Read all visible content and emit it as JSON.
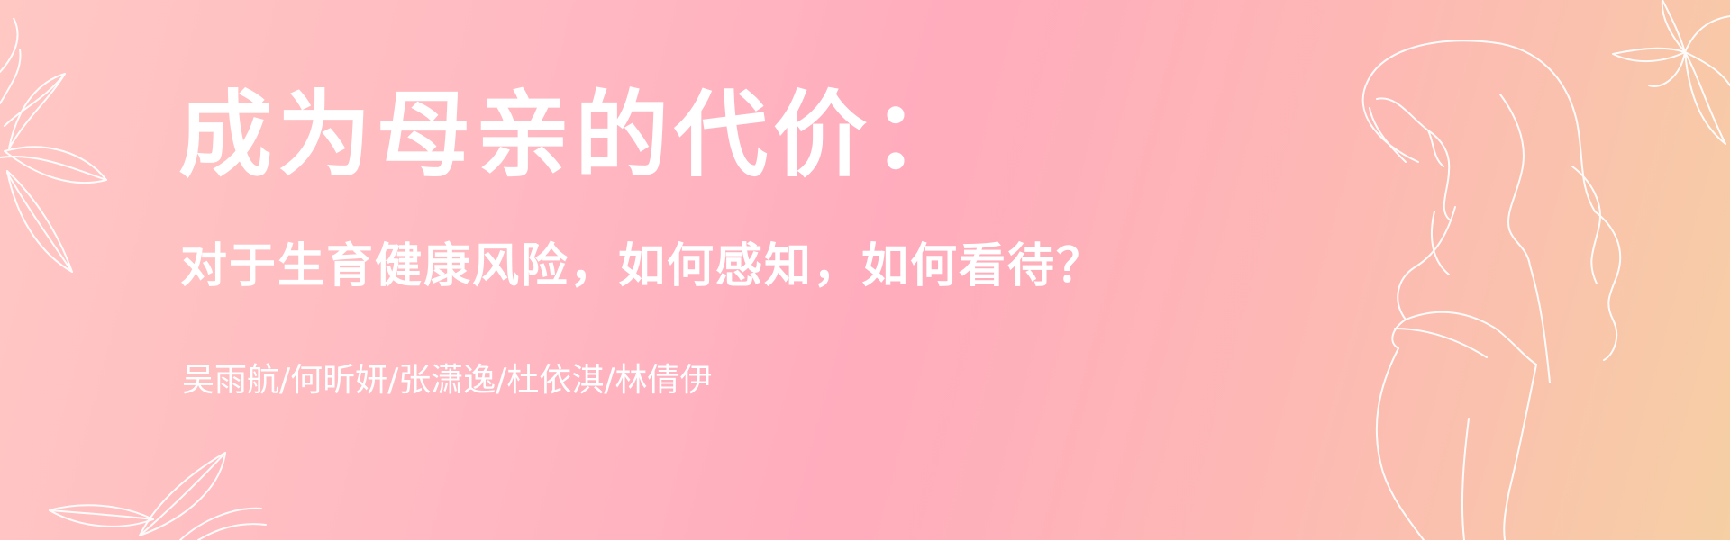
{
  "banner": {
    "title": "成为母亲的代价：",
    "subtitle": "对于生育健康风险，如何感知，如何看待？",
    "authors": "吴雨航/何昕妍/张潇逸/杜依淇/林倩伊"
  },
  "colors": {
    "gradient_start": "#ffc8c3",
    "gradient_mid": "#ffacbd",
    "gradient_end": "#f6cfa4",
    "text": "#ffffff",
    "line_art": "#ffffff"
  },
  "icons": [
    "leaf-sprig-icon",
    "leaf-cluster-icon",
    "flower-icon",
    "pregnant-woman-line-art"
  ]
}
